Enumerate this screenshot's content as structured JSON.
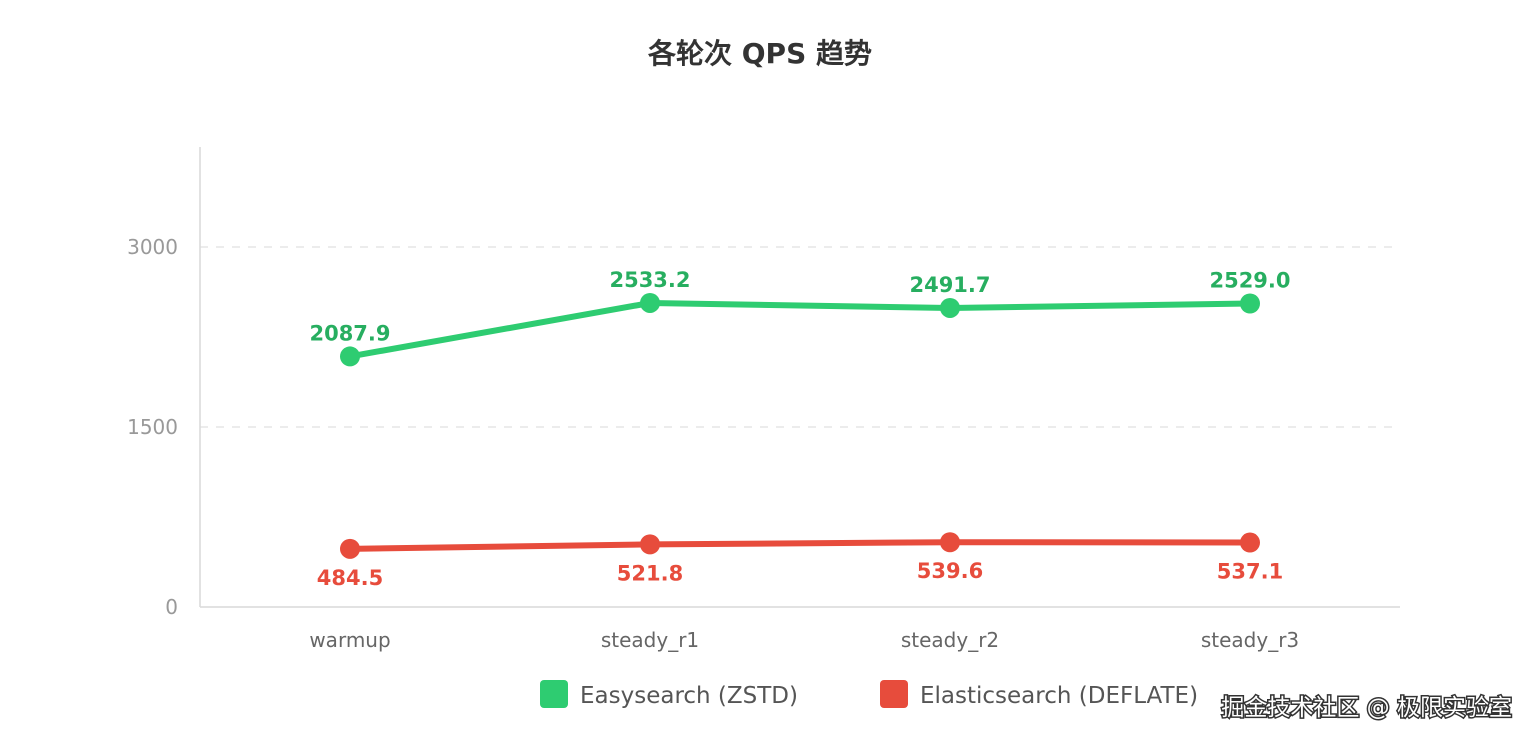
{
  "chart_data": {
    "type": "line",
    "title": "各轮次 QPS 趋势",
    "categories": [
      "warmup",
      "steady_r1",
      "steady_r2",
      "steady_r3"
    ],
    "series": [
      {
        "name": "Easysearch (ZSTD)",
        "values": [
          2087.9,
          2533.2,
          2491.7,
          2529.0
        ],
        "labels": [
          "2087.9",
          "2533.2",
          "2491.7",
          "2529.0"
        ],
        "color": "#2ecc71",
        "label_color": "#27ae60",
        "label_position": "above"
      },
      {
        "name": "Elasticsearch (DEFLATE)",
        "values": [
          484.5,
          521.8,
          539.6,
          537.1
        ],
        "labels": [
          "484.5",
          "521.8",
          "539.6",
          "537.1"
        ],
        "color": "#e74c3c",
        "label_color": "#e74c3c",
        "label_position": "below"
      }
    ],
    "y_ticks": [
      "0",
      "1500",
      "3000"
    ],
    "ylim": [
      0,
      3833
    ],
    "grid": true,
    "legend": "bottom-center"
  },
  "watermark": "掘金技术社区 @ 极限实验室"
}
